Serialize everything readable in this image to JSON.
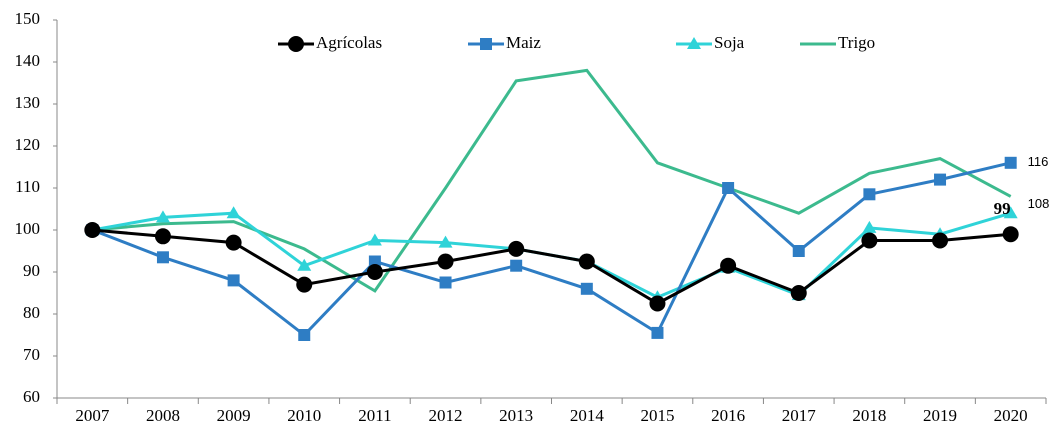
{
  "chart_data": {
    "type": "line",
    "categories": [
      "2007",
      "2008",
      "2009",
      "2010",
      "2011",
      "2012",
      "2013",
      "2014",
      "2015",
      "2016",
      "2017",
      "2018",
      "2019",
      "2020"
    ],
    "series": [
      {
        "name": "Agrícolas",
        "color": "#000000",
        "marker": "circle",
        "values": [
          100,
          98.5,
          97,
          87,
          90,
          92.5,
          95.5,
          92.5,
          82.5,
          91.5,
          85,
          97.5,
          97.5,
          99
        ]
      },
      {
        "name": "Maiz",
        "color": "#2e7dc4",
        "marker": "square",
        "values": [
          100,
          93.5,
          88,
          75,
          92.5,
          87.5,
          91.5,
          86,
          75.5,
          110,
          95,
          108.5,
          112,
          116
        ]
      },
      {
        "name": "Soja",
        "color": "#2fd3d8",
        "marker": "triangle",
        "values": [
          100,
          103,
          104,
          91.5,
          97.5,
          97,
          95.5,
          92.5,
          84,
          91,
          84.5,
          100.5,
          99,
          104
        ]
      },
      {
        "name": "Trigo",
        "color": "#3cba8e",
        "marker": "none",
        "values": [
          100,
          101.5,
          102,
          95.5,
          85.5,
          110,
          135.5,
          138,
          116,
          110,
          104,
          113.5,
          117,
          108
        ]
      }
    ],
    "ylim": [
      60,
      150
    ],
    "yticks": [
      60,
      70,
      80,
      90,
      100,
      110,
      120,
      130,
      140,
      150
    ],
    "grid": false,
    "legend": "top"
  }
}
